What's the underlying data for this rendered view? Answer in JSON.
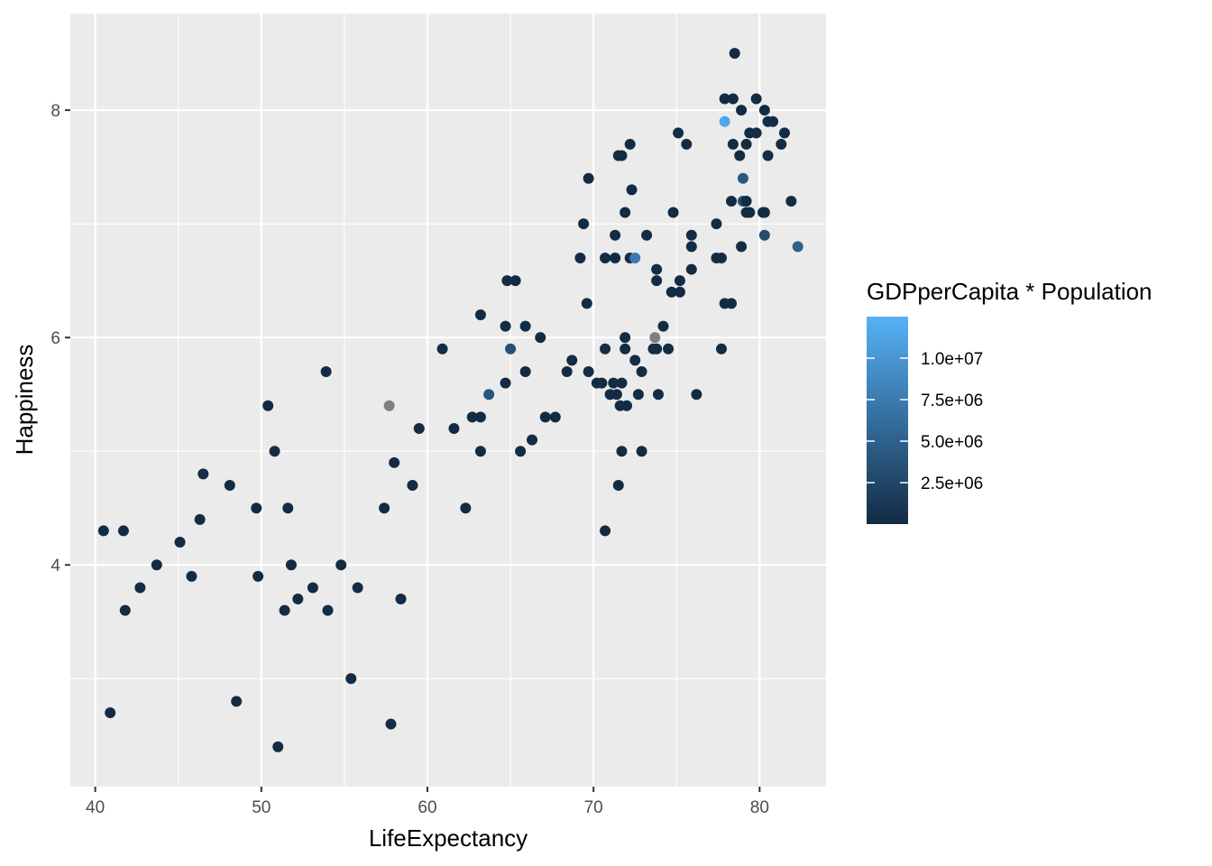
{
  "chart_data": {
    "type": "scatter",
    "xlabel": "LifeExpectancy",
    "ylabel": "Happiness",
    "xlim": [
      38.5,
      84
    ],
    "ylim": [
      2.05,
      8.85
    ],
    "x_ticks": [
      40,
      50,
      60,
      70,
      80
    ],
    "y_ticks": [
      4,
      6,
      8
    ],
    "grid": true,
    "legend": {
      "title": "GDPperCapita * Population",
      "position": "right",
      "type": "color-gradient",
      "range": [
        0,
        12500000.0
      ],
      "breaks": [
        2500000,
        5000000,
        7500000,
        10000000
      ],
      "labels": [
        "2.5e+06",
        "5.0e+06",
        "7.5e+06",
        "1.0e+07"
      ],
      "low_color": "#132B43",
      "high_color": "#56B1F7",
      "na_color": "#7F7F7F"
    },
    "points": [
      {
        "x": 40.5,
        "y": 4.3,
        "c": 50000
      },
      {
        "x": 41.7,
        "y": 4.3,
        "c": 50000
      },
      {
        "x": 40.9,
        "y": 2.7,
        "c": 50000
      },
      {
        "x": 41.8,
        "y": 3.6,
        "c": 50000
      },
      {
        "x": 42.7,
        "y": 3.8,
        "c": 50000
      },
      {
        "x": 43.7,
        "y": 4.0,
        "c": 50000
      },
      {
        "x": 45.1,
        "y": 4.2,
        "c": 50000
      },
      {
        "x": 45.8,
        "y": 3.9,
        "c": 50000
      },
      {
        "x": 46.3,
        "y": 4.4,
        "c": 50000
      },
      {
        "x": 46.5,
        "y": 4.8,
        "c": 50000
      },
      {
        "x": 48.1,
        "y": 4.7,
        "c": 50000
      },
      {
        "x": 48.5,
        "y": 2.8,
        "c": 50000
      },
      {
        "x": 49.7,
        "y": 4.5,
        "c": 50000
      },
      {
        "x": 49.8,
        "y": 3.9,
        "c": 50000
      },
      {
        "x": 50.4,
        "y": 5.4,
        "c": 50000
      },
      {
        "x": 50.8,
        "y": 5.0,
        "c": 50000
      },
      {
        "x": 51.0,
        "y": 2.4,
        "c": 50000
      },
      {
        "x": 51.4,
        "y": 3.6,
        "c": 50000
      },
      {
        "x": 51.6,
        "y": 4.5,
        "c": 50000
      },
      {
        "x": 51.8,
        "y": 4.0,
        "c": 50000
      },
      {
        "x": 52.2,
        "y": 3.7,
        "c": 50000
      },
      {
        "x": 53.1,
        "y": 3.8,
        "c": 50000
      },
      {
        "x": 53.9,
        "y": 5.7,
        "c": 50000
      },
      {
        "x": 54.0,
        "y": 3.6,
        "c": 50000
      },
      {
        "x": 54.8,
        "y": 4.0,
        "c": 50000
      },
      {
        "x": 55.4,
        "y": 3.0,
        "c": 50000
      },
      {
        "x": 55.8,
        "y": 3.8,
        "c": 50000
      },
      {
        "x": 57.4,
        "y": 4.5,
        "c": 50000
      },
      {
        "x": 57.7,
        "y": 5.4,
        "c": null
      },
      {
        "x": 57.8,
        "y": 2.6,
        "c": 50000
      },
      {
        "x": 58.0,
        "y": 4.9,
        "c": 50000
      },
      {
        "x": 58.4,
        "y": 3.7,
        "c": 50000
      },
      {
        "x": 59.1,
        "y": 4.7,
        "c": 50000
      },
      {
        "x": 59.5,
        "y": 5.2,
        "c": 50000
      },
      {
        "x": 60.9,
        "y": 5.9,
        "c": 50000
      },
      {
        "x": 61.6,
        "y": 5.2,
        "c": 50000
      },
      {
        "x": 62.3,
        "y": 4.5,
        "c": 50000
      },
      {
        "x": 62.7,
        "y": 5.3,
        "c": 50000
      },
      {
        "x": 63.2,
        "y": 5.3,
        "c": 50000
      },
      {
        "x": 63.2,
        "y": 6.2,
        "c": 50000
      },
      {
        "x": 63.2,
        "y": 5.0,
        "c": 50000
      },
      {
        "x": 63.7,
        "y": 5.5,
        "c": 4000000
      },
      {
        "x": 64.7,
        "y": 5.6,
        "c": 50000
      },
      {
        "x": 64.7,
        "y": 6.1,
        "c": 50000
      },
      {
        "x": 64.8,
        "y": 6.5,
        "c": 50000
      },
      {
        "x": 65.0,
        "y": 5.9,
        "c": 3500000
      },
      {
        "x": 65.3,
        "y": 6.5,
        "c": 50000
      },
      {
        "x": 65.6,
        "y": 5.0,
        "c": 50000
      },
      {
        "x": 65.9,
        "y": 6.1,
        "c": 50000
      },
      {
        "x": 65.9,
        "y": 5.7,
        "c": 50000
      },
      {
        "x": 66.3,
        "y": 5.1,
        "c": 50000
      },
      {
        "x": 66.8,
        "y": 6.0,
        "c": 50000
      },
      {
        "x": 67.1,
        "y": 5.3,
        "c": 50000
      },
      {
        "x": 67.7,
        "y": 5.3,
        "c": 50000
      },
      {
        "x": 68.4,
        "y": 5.7,
        "c": 50000
      },
      {
        "x": 68.7,
        "y": 5.8,
        "c": 50000
      },
      {
        "x": 69.2,
        "y": 6.7,
        "c": 50000
      },
      {
        "x": 69.4,
        "y": 7.0,
        "c": 50000
      },
      {
        "x": 69.6,
        "y": 6.3,
        "c": 50000
      },
      {
        "x": 69.7,
        "y": 7.4,
        "c": 50000
      },
      {
        "x": 69.7,
        "y": 5.7,
        "c": 50000
      },
      {
        "x": 70.2,
        "y": 5.6,
        "c": 50000
      },
      {
        "x": 70.5,
        "y": 5.6,
        "c": 50000
      },
      {
        "x": 70.7,
        "y": 6.7,
        "c": 50000
      },
      {
        "x": 70.7,
        "y": 5.9,
        "c": 50000
      },
      {
        "x": 70.7,
        "y": 4.3,
        "c": 50000
      },
      {
        "x": 71.0,
        "y": 5.5,
        "c": 50000
      },
      {
        "x": 71.2,
        "y": 5.6,
        "c": 50000
      },
      {
        "x": 71.3,
        "y": 6.9,
        "c": 50000
      },
      {
        "x": 71.3,
        "y": 6.7,
        "c": 50000
      },
      {
        "x": 71.4,
        "y": 5.5,
        "c": 50000
      },
      {
        "x": 71.5,
        "y": 7.6,
        "c": 50000
      },
      {
        "x": 71.5,
        "y": 4.7,
        "c": 50000
      },
      {
        "x": 71.6,
        "y": 5.4,
        "c": 50000
      },
      {
        "x": 71.7,
        "y": 7.6,
        "c": 50000
      },
      {
        "x": 71.7,
        "y": 5.6,
        "c": 50000
      },
      {
        "x": 71.7,
        "y": 5.0,
        "c": 50000
      },
      {
        "x": 71.9,
        "y": 7.1,
        "c": 50000
      },
      {
        "x": 71.9,
        "y": 6.0,
        "c": 50000
      },
      {
        "x": 71.9,
        "y": 5.9,
        "c": 50000
      },
      {
        "x": 72.0,
        "y": 5.4,
        "c": 50000
      },
      {
        "x": 72.2,
        "y": 7.7,
        "c": 50000
      },
      {
        "x": 72.2,
        "y": 6.7,
        "c": 50000
      },
      {
        "x": 72.3,
        "y": 7.3,
        "c": 50000
      },
      {
        "x": 72.5,
        "y": 6.7,
        "c": 7500000
      },
      {
        "x": 72.5,
        "y": 5.8,
        "c": 50000
      },
      {
        "x": 72.7,
        "y": 5.5,
        "c": 50000
      },
      {
        "x": 72.9,
        "y": 5.7,
        "c": 50000
      },
      {
        "x": 72.9,
        "y": 5.0,
        "c": 50000
      },
      {
        "x": 73.2,
        "y": 6.9,
        "c": 50000
      },
      {
        "x": 73.6,
        "y": 5.9,
        "c": 50000
      },
      {
        "x": 73.7,
        "y": 6.0,
        "c": null
      },
      {
        "x": 73.8,
        "y": 6.6,
        "c": 50000
      },
      {
        "x": 73.8,
        "y": 6.5,
        "c": 50000
      },
      {
        "x": 73.8,
        "y": 5.9,
        "c": 50000
      },
      {
        "x": 73.9,
        "y": 5.5,
        "c": 50000
      },
      {
        "x": 74.2,
        "y": 6.1,
        "c": 50000
      },
      {
        "x": 74.5,
        "y": 5.9,
        "c": 50000
      },
      {
        "x": 74.7,
        "y": 6.4,
        "c": 50000
      },
      {
        "x": 74.8,
        "y": 7.1,
        "c": 50000
      },
      {
        "x": 75.1,
        "y": 7.8,
        "c": 50000
      },
      {
        "x": 75.2,
        "y": 6.5,
        "c": 50000
      },
      {
        "x": 75.2,
        "y": 6.4,
        "c": 50000
      },
      {
        "x": 75.6,
        "y": 7.7,
        "c": 50000
      },
      {
        "x": 75.9,
        "y": 6.9,
        "c": 50000
      },
      {
        "x": 75.9,
        "y": 6.8,
        "c": 50000
      },
      {
        "x": 75.9,
        "y": 6.6,
        "c": 50000
      },
      {
        "x": 76.2,
        "y": 5.5,
        "c": 50000
      },
      {
        "x": 77.4,
        "y": 7.0,
        "c": 50000
      },
      {
        "x": 77.4,
        "y": 6.7,
        "c": 50000
      },
      {
        "x": 77.7,
        "y": 6.7,
        "c": 50000
      },
      {
        "x": 77.7,
        "y": 5.9,
        "c": 50000
      },
      {
        "x": 77.9,
        "y": 8.1,
        "c": 50000
      },
      {
        "x": 77.9,
        "y": 7.9,
        "c": 11500000
      },
      {
        "x": 77.9,
        "y": 6.3,
        "c": 50000
      },
      {
        "x": 78.3,
        "y": 7.2,
        "c": 50000
      },
      {
        "x": 78.3,
        "y": 6.3,
        "c": 50000
      },
      {
        "x": 78.4,
        "y": 8.1,
        "c": 50000
      },
      {
        "x": 78.4,
        "y": 7.7,
        "c": 50000
      },
      {
        "x": 78.5,
        "y": 8.5,
        "c": 50000
      },
      {
        "x": 78.8,
        "y": 7.6,
        "c": 50000
      },
      {
        "x": 78.9,
        "y": 8.0,
        "c": 50000
      },
      {
        "x": 78.9,
        "y": 6.8,
        "c": 50000
      },
      {
        "x": 79.0,
        "y": 7.4,
        "c": 4200000
      },
      {
        "x": 79.0,
        "y": 7.2,
        "c": 3200000
      },
      {
        "x": 79.2,
        "y": 7.7,
        "c": 50000
      },
      {
        "x": 79.2,
        "y": 7.2,
        "c": 50000
      },
      {
        "x": 79.2,
        "y": 7.1,
        "c": 50000
      },
      {
        "x": 79.4,
        "y": 7.8,
        "c": 50000
      },
      {
        "x": 79.4,
        "y": 7.1,
        "c": 50000
      },
      {
        "x": 79.8,
        "y": 8.1,
        "c": 50000
      },
      {
        "x": 79.8,
        "y": 7.8,
        "c": 50000
      },
      {
        "x": 80.2,
        "y": 7.1,
        "c": 50000
      },
      {
        "x": 80.3,
        "y": 8.0,
        "c": 50000
      },
      {
        "x": 80.3,
        "y": 7.1,
        "c": 50000
      },
      {
        "x": 80.3,
        "y": 6.9,
        "c": 3000000
      },
      {
        "x": 80.5,
        "y": 7.9,
        "c": 50000
      },
      {
        "x": 80.5,
        "y": 7.6,
        "c": 50000
      },
      {
        "x": 80.8,
        "y": 7.9,
        "c": 50000
      },
      {
        "x": 81.3,
        "y": 7.7,
        "c": 50000
      },
      {
        "x": 81.5,
        "y": 7.8,
        "c": 50000
      },
      {
        "x": 81.9,
        "y": 7.2,
        "c": 50000
      },
      {
        "x": 82.3,
        "y": 6.8,
        "c": 5000000
      }
    ]
  }
}
